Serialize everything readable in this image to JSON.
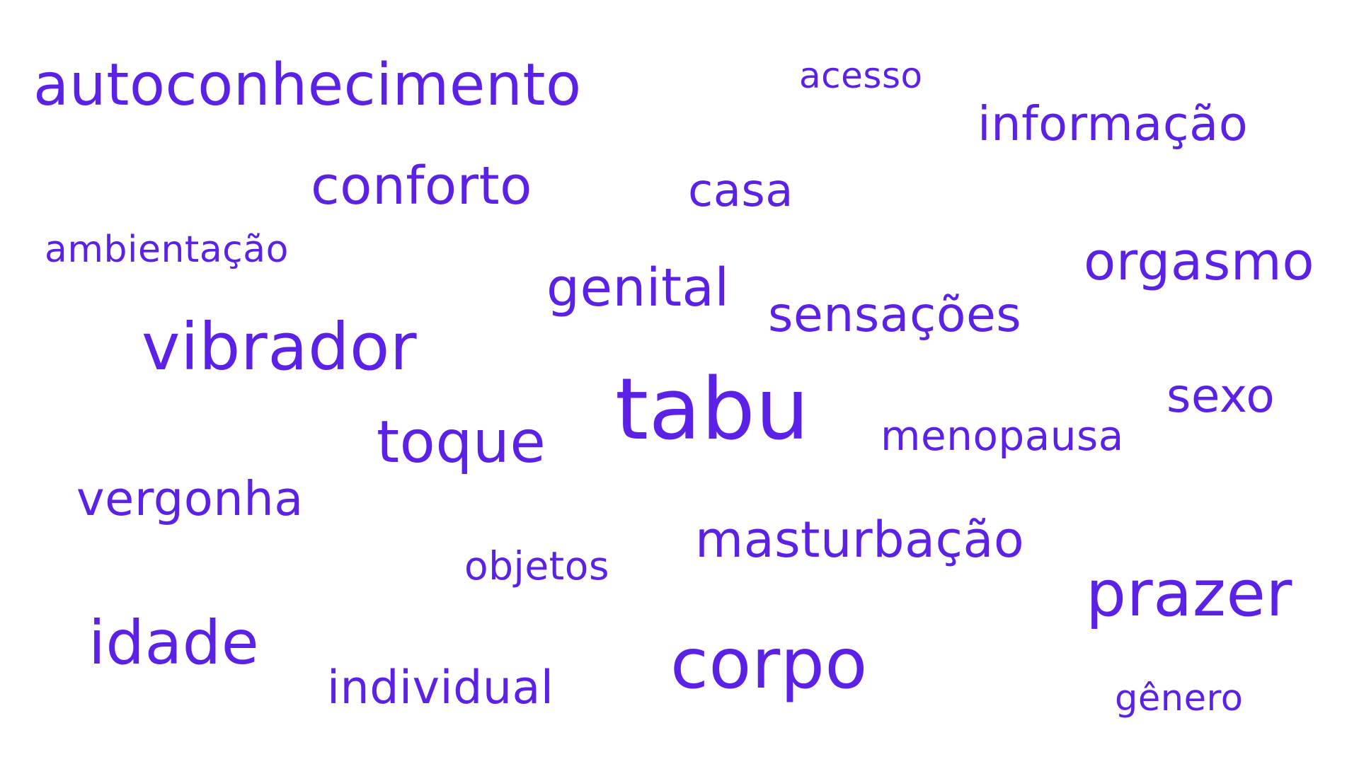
{
  "colors": {
    "background": "#ffffff",
    "text": "#5b21e6"
  },
  "words": [
    {
      "id": "autoconhecimento",
      "text": "autoconhecimento"
    },
    {
      "id": "acesso",
      "text": "acesso"
    },
    {
      "id": "informacao",
      "text": "informação"
    },
    {
      "id": "conforto",
      "text": "conforto"
    },
    {
      "id": "casa",
      "text": "casa"
    },
    {
      "id": "ambientacao",
      "text": "ambientação"
    },
    {
      "id": "orgasmo",
      "text": "orgasmo"
    },
    {
      "id": "genital",
      "text": "genital"
    },
    {
      "id": "sensacoes",
      "text": "sensações"
    },
    {
      "id": "vibrador",
      "text": "vibrador"
    },
    {
      "id": "tabu",
      "text": "tabu"
    },
    {
      "id": "sexo",
      "text": "sexo"
    },
    {
      "id": "menopausa",
      "text": "menopausa"
    },
    {
      "id": "toque",
      "text": "toque"
    },
    {
      "id": "vergonha",
      "text": "vergonha"
    },
    {
      "id": "masturbacao",
      "text": "masturbação"
    },
    {
      "id": "objetos",
      "text": "objetos"
    },
    {
      "id": "prazer",
      "text": "prazer"
    },
    {
      "id": "idade",
      "text": "idade"
    },
    {
      "id": "corpo",
      "text": "corpo"
    },
    {
      "id": "individual",
      "text": "individual"
    },
    {
      "id": "genero",
      "text": "gênero"
    }
  ]
}
